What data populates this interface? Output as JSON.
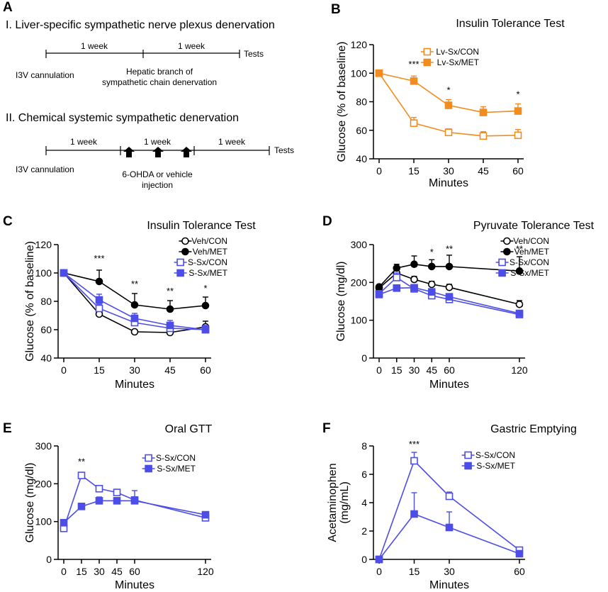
{
  "panel_labels": {
    "A": "A",
    "B": "B",
    "C": "C",
    "D": "D",
    "E": "E",
    "F": "F"
  },
  "schematic": {
    "section1_title": "I.  Liver-specific sympathetic nerve plexus denervation",
    "section1_periods": [
      "1 week",
      "1 week"
    ],
    "section1_tests": "Tests",
    "section1_start": "I3V cannulation",
    "section1_mid_line1": "Hepatic branch of",
    "section1_mid_line2": "sympathetic chain denervation",
    "section2_title": "II. Chemical systemic sympathetic denervation",
    "section2_periods": [
      "1 week",
      "1 week",
      "1 week"
    ],
    "section2_tests": "Tests",
    "section2_start": "I3V cannulation",
    "section2_mid_line1": "6-OHDA or vehicle",
    "section2_mid_line2": "injection"
  },
  "colors": {
    "orange": "#f28c1e",
    "blue": "#4d4de8",
    "black": "#000000"
  },
  "chart_data": [
    {
      "id": "B",
      "type": "line",
      "title": "Insulin Tolerance Test",
      "xlabel": "Minutes",
      "ylabel": "Glucose (% of baseline)",
      "x": [
        0,
        15,
        30,
        45,
        60
      ],
      "xticks": [
        0,
        15,
        30,
        45,
        60
      ],
      "xlim": [
        0,
        60
      ],
      "ylim": [
        40,
        120
      ],
      "yticks": [
        40,
        60,
        80,
        100,
        120
      ],
      "series": [
        {
          "name": "Lv-Sx/CON",
          "color": "#f28c1e",
          "marker": "square",
          "filled": false,
          "values": [
            100,
            65,
            58.5,
            56,
            56.5
          ],
          "err": [
            0,
            4,
            2.5,
            3,
            4
          ]
        },
        {
          "name": "Lv-Sx/MET",
          "color": "#f28c1e",
          "marker": "square",
          "filled": true,
          "values": [
            100,
            94.5,
            77.5,
            72.5,
            73.5
          ],
          "err": [
            0,
            3.5,
            4,
            4,
            5
          ]
        }
      ],
      "annotations": [
        {
          "x": 15,
          "text": "***",
          "y": 104
        },
        {
          "x": 30,
          "text": "*",
          "y": 86
        },
        {
          "x": 60,
          "text": "*",
          "y": 83
        }
      ]
    },
    {
      "id": "C",
      "type": "line",
      "title": "Insulin Tolerance Test",
      "xlabel": "Minutes",
      "ylabel": "Glucose (% of baseline)",
      "x": [
        0,
        15,
        30,
        45,
        60
      ],
      "xticks": [
        0,
        15,
        30,
        45,
        60
      ],
      "xlim": [
        0,
        60
      ],
      "ylim": [
        40,
        120
      ],
      "yticks": [
        40,
        60,
        80,
        100,
        120
      ],
      "series": [
        {
          "name": "Veh/CON",
          "color": "#000000",
          "marker": "circle",
          "filled": false,
          "values": [
            100,
            71,
            58.5,
            58,
            62
          ],
          "err": [
            0,
            2,
            1.5,
            1.5,
            4
          ]
        },
        {
          "name": "Veh/MET",
          "color": "#000000",
          "marker": "circle",
          "filled": true,
          "values": [
            100,
            94,
            77.5,
            74.5,
            77
          ],
          "err": [
            0,
            8,
            8,
            6,
            6
          ]
        },
        {
          "name": "S-Sx/CON",
          "color": "#4d4de8",
          "marker": "square",
          "filled": false,
          "values": [
            100,
            75,
            65,
            61,
            60
          ],
          "err": [
            0,
            3,
            4,
            3,
            3
          ]
        },
        {
          "name": "S-Sx/MET",
          "color": "#4d4de8",
          "marker": "square",
          "filled": true,
          "values": [
            100,
            81,
            68,
            63,
            60
          ],
          "err": [
            0,
            4,
            3.5,
            3.5,
            3
          ]
        }
      ],
      "annotations": [
        {
          "x": 15,
          "text": "***",
          "y": 108
        },
        {
          "x": 30,
          "text": "**",
          "y": 90
        },
        {
          "x": 45,
          "text": "**",
          "y": 85
        },
        {
          "x": 60,
          "text": "*",
          "y": 87
        }
      ]
    },
    {
      "id": "D",
      "type": "line",
      "title": "Pyruvate Tolerance Test",
      "xlabel": "Minutes",
      "ylabel": "Glucose (mg/dl)",
      "x": [
        0,
        15,
        30,
        45,
        60,
        120
      ],
      "xticks": [
        0,
        15,
        30,
        45,
        60,
        120
      ],
      "xlim": [
        0,
        120
      ],
      "ylim": [
        0,
        300
      ],
      "yticks": [
        0,
        100,
        200,
        300
      ],
      "series": [
        {
          "name": "Veh/CON",
          "color": "#000000",
          "marker": "circle",
          "filled": false,
          "values": [
            185,
            225,
            208,
            195,
            187,
            142
          ],
          "err": [
            5,
            10,
            8,
            8,
            8,
            10
          ]
        },
        {
          "name": "Veh/MET",
          "color": "#000000",
          "marker": "circle",
          "filled": true,
          "values": [
            188,
            238,
            248,
            242,
            242,
            230
          ],
          "err": [
            5,
            10,
            22,
            18,
            30,
            38
          ]
        },
        {
          "name": "S-Sx/CON",
          "color": "#4d4de8",
          "marker": "square",
          "filled": false,
          "values": [
            170,
            213,
            183,
            165,
            155,
            115
          ],
          "err": [
            5,
            12,
            10,
            8,
            6,
            6
          ]
        },
        {
          "name": "S-Sx/MET",
          "color": "#4d4de8",
          "marker": "square",
          "filled": true,
          "values": [
            168,
            185,
            186,
            175,
            162,
            118
          ],
          "err": [
            5,
            8,
            8,
            8,
            6,
            5
          ]
        }
      ],
      "annotations": [
        {
          "x": 45,
          "text": "*",
          "y": 272
        },
        {
          "x": 60,
          "text": "**",
          "y": 280
        },
        {
          "x": 120,
          "text": "**",
          "y": 280
        }
      ]
    },
    {
      "id": "E",
      "type": "line",
      "title": "Oral GTT",
      "xlabel": "Minutes",
      "ylabel": "Glucose (mg/dl)",
      "x": [
        0,
        15,
        30,
        45,
        60,
        120
      ],
      "xticks": [
        0,
        15,
        30,
        45,
        60,
        120
      ],
      "xlim": [
        0,
        120
      ],
      "ylim": [
        0,
        300
      ],
      "yticks": [
        0,
        100,
        200,
        300
      ],
      "series": [
        {
          "name": "S-Sx/CON",
          "color": "#4d4de8",
          "marker": "square",
          "filled": false,
          "values": [
            82,
            222,
            187,
            177,
            157,
            110
          ],
          "err": [
            6,
            5,
            6,
            6,
            25,
            8
          ]
        },
        {
          "name": "S-Sx/MET",
          "color": "#4d4de8",
          "marker": "square",
          "filled": true,
          "values": [
            97,
            140,
            155,
            155,
            155,
            118
          ],
          "err": [
            6,
            5,
            10,
            8,
            8,
            8
          ]
        }
      ],
      "annotations": [
        {
          "x": 15,
          "text": "**",
          "y": 250
        }
      ]
    },
    {
      "id": "F",
      "type": "line",
      "title": "Gastric Emptying",
      "xlabel": "Minutes",
      "ylabel": "Acetaminophen (mg/mL)",
      "ylabel_lines": [
        "Acetaminophen",
        "(mg/mL)"
      ],
      "x": [
        0,
        15,
        30,
        60
      ],
      "xticks": [
        0,
        15,
        30,
        60
      ],
      "xlim": [
        0,
        60
      ],
      "ylim": [
        0,
        8
      ],
      "yticks": [
        0,
        2,
        4,
        6,
        8
      ],
      "series": [
        {
          "name": "S-Sx/CON",
          "color": "#4d4de8",
          "marker": "square",
          "filled": false,
          "values": [
            0,
            6.95,
            4.45,
            0.65
          ],
          "err": [
            0,
            0.6,
            0.3,
            0.1
          ]
        },
        {
          "name": "S-Sx/MET",
          "color": "#4d4de8",
          "marker": "square",
          "filled": true,
          "values": [
            0,
            3.2,
            2.25,
            0.4
          ],
          "err": [
            0,
            1.5,
            1.1,
            0.1
          ]
        }
      ],
      "annotations": [
        {
          "x": 15,
          "text": "***",
          "y": 7.9
        }
      ]
    }
  ]
}
